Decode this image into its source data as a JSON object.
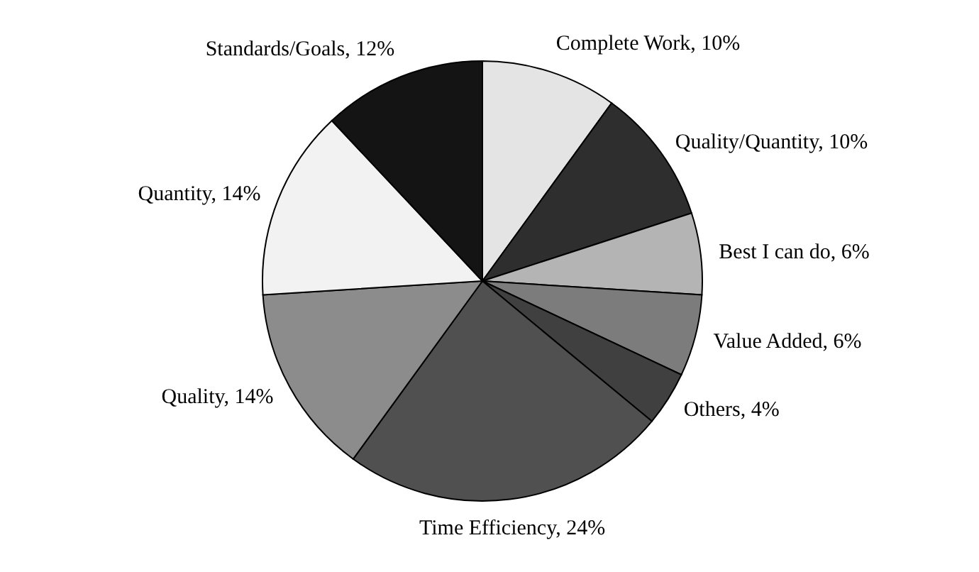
{
  "chart_data": {
    "type": "pie",
    "categories": [
      "Complete Work",
      "Quality/Quantity",
      "Best I can do",
      "Value Added",
      "Others",
      "Time Efficiency",
      "Quality",
      "Quantity",
      "Standards/Goals"
    ],
    "values": [
      10,
      10,
      6,
      6,
      4,
      24,
      14,
      14,
      12
    ],
    "value_labels": [
      "10%",
      "10%",
      "6%",
      "6%",
      "4%",
      "24%",
      "14%",
      "14%",
      "12%"
    ],
    "colors": [
      "#e4e4e4",
      "#2e2e2e",
      "#b4b4b4",
      "#7c7c7c",
      "#404040",
      "#505050",
      "#8c8c8c",
      "#f2f2f2",
      "#141414"
    ]
  }
}
